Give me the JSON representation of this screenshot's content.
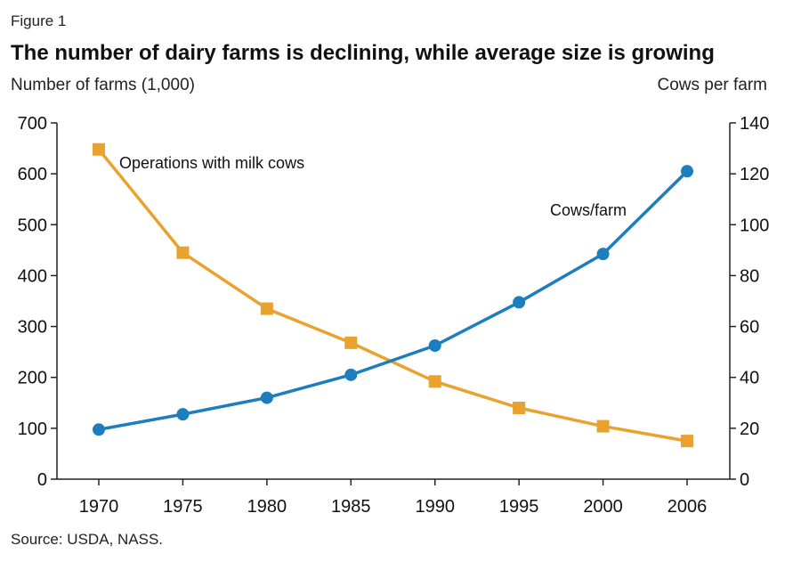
{
  "figure_label": "Figure 1",
  "title": "The number of dairy farms is declining, while average size is growing",
  "left_axis_title": "Number of farms (1,000)",
  "right_axis_title": "Cows per farm",
  "source": "Source: USDA, NASS.",
  "colors": {
    "operations": "#E8A22D",
    "cows_per_farm": "#1C7DBF",
    "axis": "#222222"
  },
  "chart_data": {
    "type": "line",
    "x": [
      "1970",
      "1975",
      "1980",
      "1985",
      "1990",
      "1995",
      "2000",
      "2006"
    ],
    "left_axis": {
      "range": [
        0,
        700
      ],
      "ticks": [
        "0",
        "100",
        "200",
        "300",
        "400",
        "500",
        "600",
        "700"
      ]
    },
    "right_axis": {
      "range": [
        0,
        140
      ],
      "ticks": [
        "0",
        "20",
        "40",
        "60",
        "80",
        "100",
        "120",
        "140"
      ]
    },
    "grid": false,
    "series": [
      {
        "name": "Operations with milk cows",
        "axis": "left",
        "marker": "square",
        "values": [
          648,
          445,
          335,
          268,
          192,
          140,
          104,
          75
        ]
      },
      {
        "name": "Cows/farm",
        "axis": "right",
        "marker": "circle",
        "values": [
          19.5,
          25.5,
          32,
          41,
          52.5,
          69.5,
          88.5,
          121
        ]
      }
    ]
  }
}
